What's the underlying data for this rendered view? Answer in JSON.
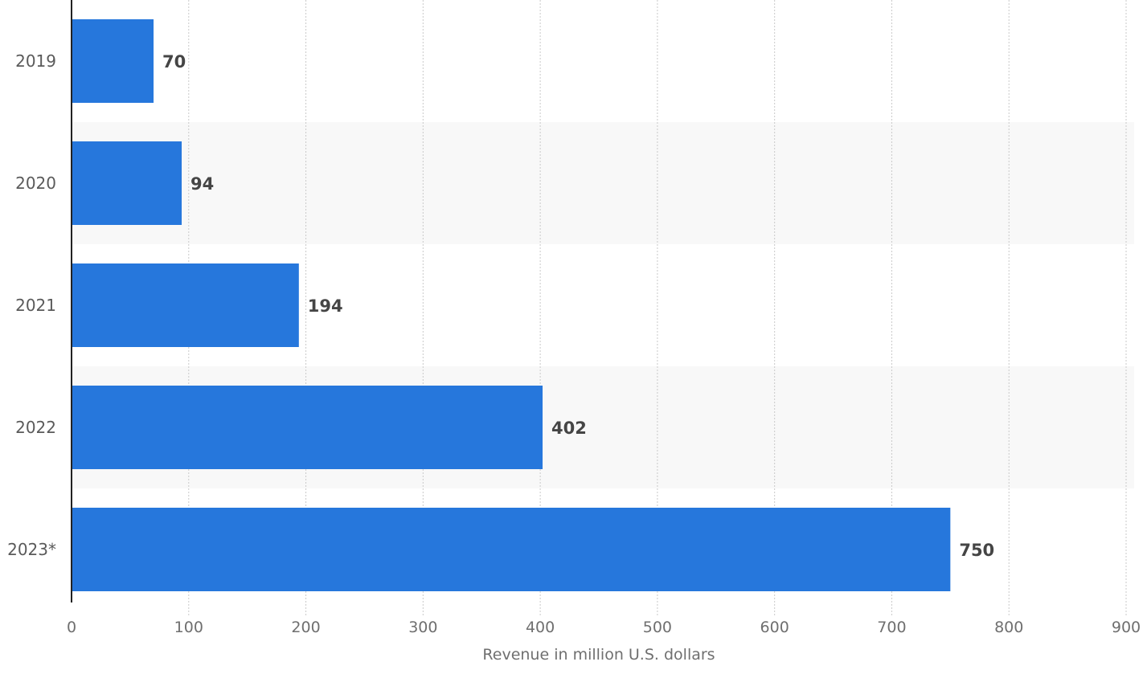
{
  "chart_data": {
    "type": "bar",
    "orientation": "horizontal",
    "categories": [
      "2019",
      "2020",
      "2021",
      "2022",
      "2023*"
    ],
    "values": [
      70,
      94,
      194,
      402,
      750
    ],
    "value_labels": [
      "70",
      "94",
      "194",
      "402",
      "750"
    ],
    "title": "",
    "xlabel": "Revenue in million U.S. dollars",
    "ylabel": "",
    "xlim": [
      0,
      900
    ],
    "xticks": [
      "0",
      "100",
      "200",
      "300",
      "400",
      "500",
      "600",
      "700",
      "800",
      "900"
    ],
    "grid": "vertical dotted",
    "bar_color": "#2677dc",
    "alternate_band_color": "#f8f8f8"
  }
}
